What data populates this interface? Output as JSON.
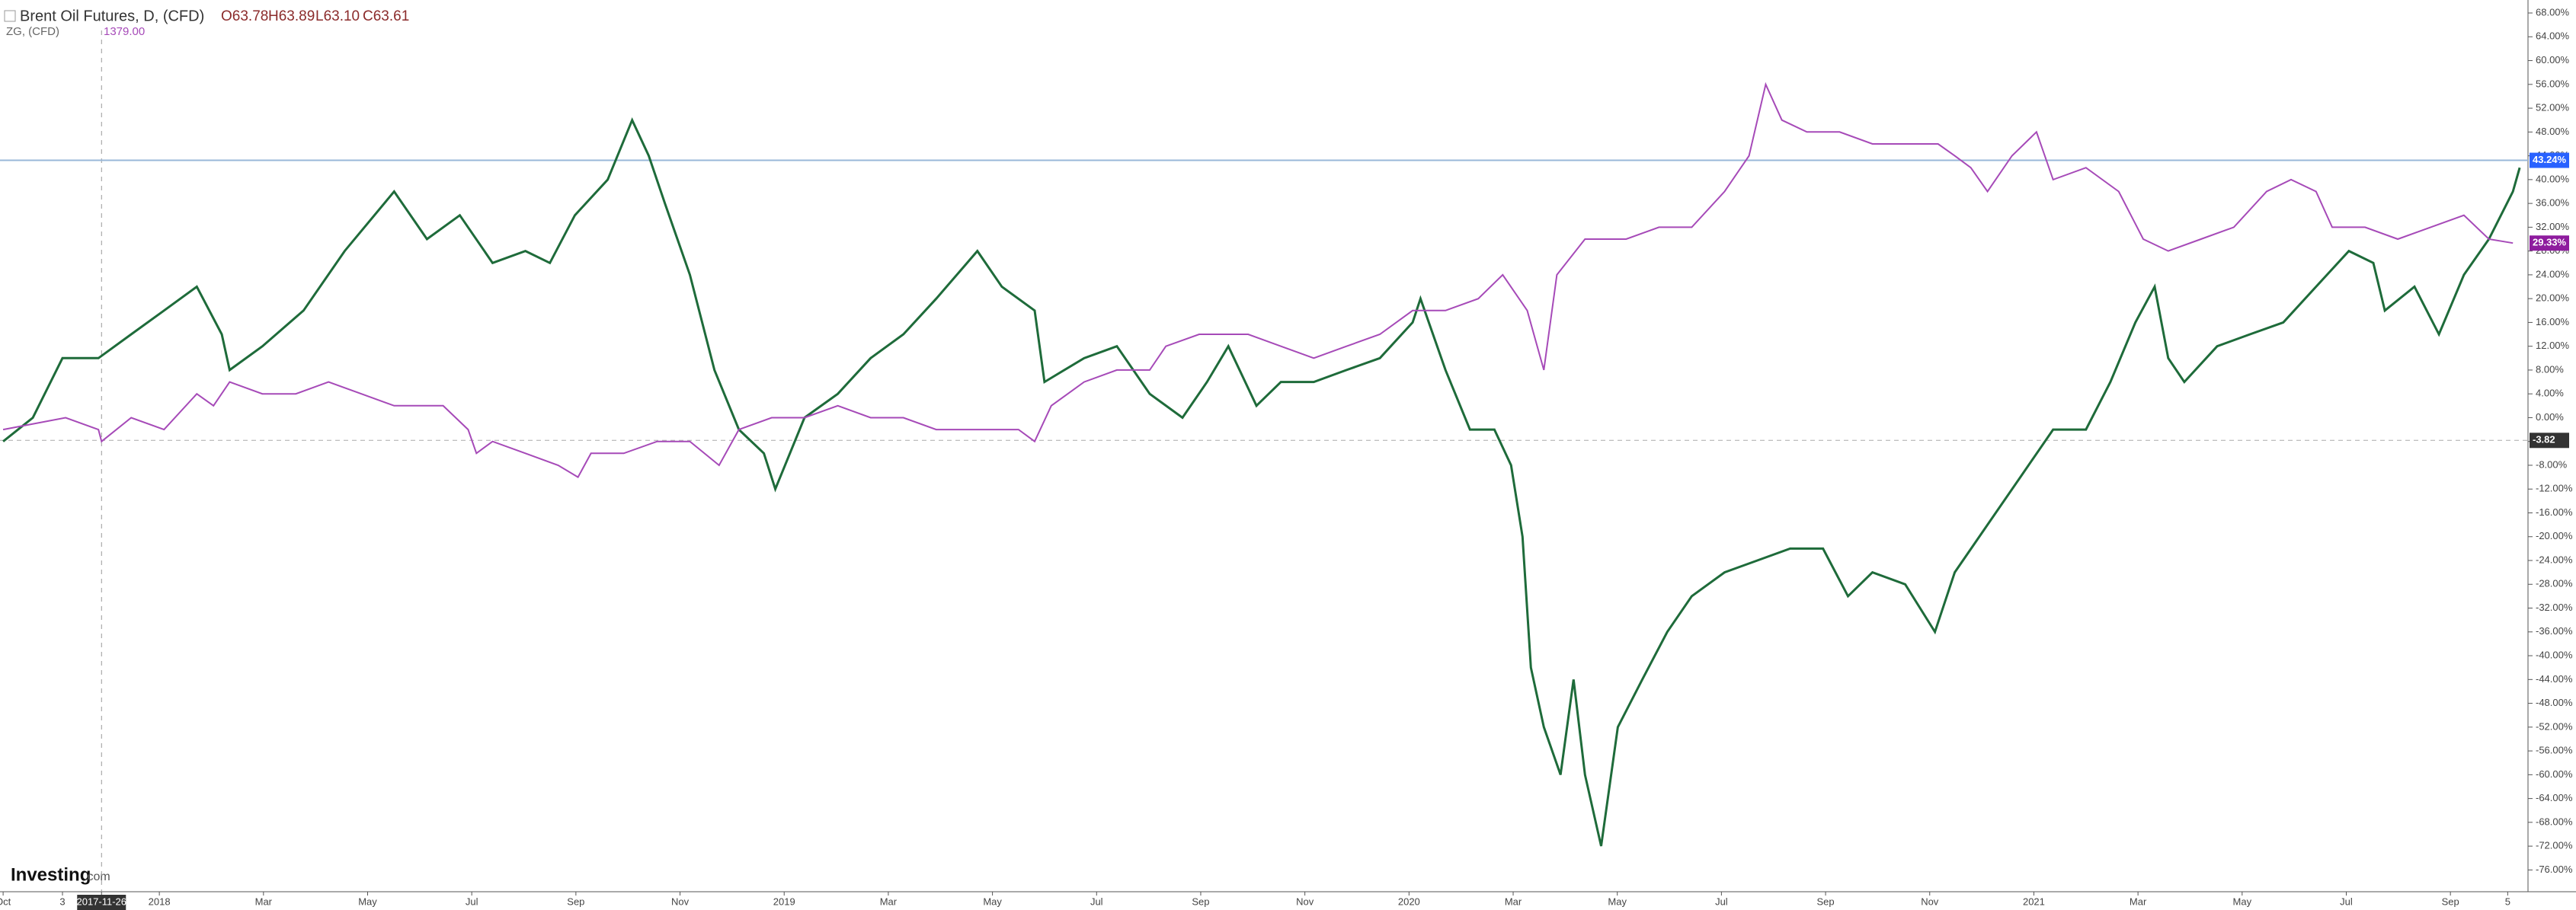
{
  "header": {
    "title": "Brent Oil Futures, D, (CFD)",
    "ohlc": [
      "O63.78",
      "H63.89",
      "L63.10",
      "C63.61"
    ],
    "compare_name": "ZG, (CFD)",
    "compare_value": "1379.00"
  },
  "logo": [
    "Investing",
    ".com"
  ],
  "chart_data": {
    "type": "line",
    "series": [
      {
        "name": "Brent Oil Futures, D, (CFD)",
        "color": "#1e6b3a",
        "x": [
          0,
          0.57,
          1.14,
          1.83,
          2.46,
          3.09,
          3.72,
          4.2,
          4.35,
          4.98,
          5.77,
          6.56,
          7.51,
          8.14,
          8.77,
          9.4,
          10.03,
          10.5,
          10.98,
          11.61,
          12.08,
          12.4,
          12.71,
          13.19,
          13.66,
          14.13,
          14.61,
          14.83,
          15.39,
          16.03,
          16.66,
          17.29,
          17.92,
          18.71,
          19.18,
          19.81,
          20,
          20.76,
          21.39,
          22.02,
          22.65,
          23.12,
          23.53,
          24.07,
          24.54,
          25.17,
          25.8,
          26.44,
          27.07,
          27.22,
          27.7,
          28.17,
          28.64,
          28.96,
          29.18,
          29.34,
          29.59,
          29.91,
          30.16,
          30.38,
          30.69,
          31.01,
          31.48,
          31.96,
          32.43,
          33.06,
          33.69,
          34.32,
          34.95,
          35.43,
          35.9,
          36.53,
          37.1,
          37.48,
          38.11,
          38.74,
          39.37,
          40,
          40.47,
          40.95,
          41.32,
          41.58,
          41.89,
          42.52,
          43.15,
          43.79,
          44.42,
          45.05,
          45.52,
          45.74,
          46.31,
          46.78,
          47.26,
          47.74,
          48.2,
          48.33
        ],
        "values": [
          -4,
          0,
          10,
          10,
          14,
          18,
          22,
          14,
          8,
          12,
          18,
          28,
          38,
          30,
          34,
          26,
          28,
          26,
          34,
          40,
          50,
          44,
          36,
          24,
          8,
          -2,
          -6,
          -12,
          0,
          4,
          10,
          14,
          20,
          28,
          22,
          18,
          6,
          10,
          12,
          4,
          0,
          6,
          12,
          2,
          6,
          6,
          8,
          10,
          16,
          20,
          8,
          -2,
          -2,
          -8,
          -20,
          -42,
          -52,
          -60,
          -44,
          -60,
          -72,
          -52,
          -44,
          -36,
          -30,
          -26,
          -24,
          -22,
          -22,
          -30,
          -26,
          -28,
          -36,
          -26,
          -18,
          -10,
          -2,
          -2,
          6,
          16,
          22,
          10,
          6,
          12,
          14,
          16,
          22,
          28,
          26,
          18,
          22,
          14,
          24,
          30,
          38,
          42
        ]
      },
      {
        "name": "ZG, (CFD)",
        "color": "#a64ab8",
        "x": [
          0,
          1.2,
          1.83,
          1.89,
          2.46,
          3.09,
          3.72,
          4.04,
          4.35,
          4.98,
          5.62,
          6.25,
          6.88,
          7.51,
          8.14,
          8.45,
          8.93,
          9.09,
          9.4,
          10.03,
          10.66,
          11.04,
          11.29,
          11.92,
          12.56,
          13.19,
          13.75,
          14.13,
          14.76,
          15.39,
          16.03,
          16.66,
          17.29,
          17.92,
          18.86,
          19.5,
          19.81,
          20.13,
          20.76,
          21.39,
          22.02,
          22.33,
          22.97,
          23.91,
          24.54,
          25.17,
          25.8,
          26.44,
          27.07,
          27.7,
          28.33,
          28.8,
          29.27,
          29.59,
          29.84,
          30.38,
          31.17,
          31.8,
          32.43,
          33.06,
          33.53,
          33.85,
          34.16,
          34.64,
          35.27,
          35.9,
          36.53,
          37.16,
          37.48,
          37.79,
          38.11,
          38.58,
          39.05,
          39.37,
          40,
          40.63,
          41.1,
          41.58,
          42.21,
          42.84,
          43.47,
          43.94,
          44.42,
          44.73,
          45.36,
          45.99,
          46.62,
          47.26,
          47.74,
          48.2
        ],
        "values": [
          -2,
          0,
          -2,
          -4,
          0,
          -2,
          4,
          2,
          6,
          4,
          4,
          6,
          4,
          2,
          2,
          2,
          -2,
          -6,
          -4,
          -6,
          -8,
          -10,
          -6,
          -6,
          -4,
          -4,
          -8,
          -2,
          0,
          0,
          2,
          0,
          0,
          -2,
          -2,
          -2,
          -4,
          2,
          6,
          8,
          8,
          12,
          14,
          14,
          12,
          10,
          12,
          14,
          18,
          18,
          20,
          24,
          18,
          8,
          24,
          30,
          30,
          32,
          32,
          38,
          44,
          56,
          50,
          48,
          48,
          46,
          46,
          46,
          44,
          42,
          38,
          44,
          48,
          40,
          42,
          38,
          30,
          28,
          30,
          32,
          38,
          40,
          38,
          32,
          32,
          30,
          32,
          34,
          30,
          29.33
        ]
      }
    ],
    "price_labels": [
      {
        "value": 43.24,
        "label": "43.24%",
        "color": "#2962ff"
      },
      {
        "value": 29.33,
        "label": "29.33%",
        "color": "#8e1c9e"
      },
      {
        "value": -3.82,
        "label": "-3.82",
        "color": "#333333"
      }
    ],
    "xlim": [
      -0.06,
      48.49
    ],
    "xticks": [
      {
        "value": 0,
        "label": "Oct"
      },
      {
        "value": 1.14,
        "label": "3"
      },
      {
        "value": 1.89,
        "label": "2017-11-26"
      },
      {
        "value": 3,
        "label": "2018"
      },
      {
        "value": 5,
        "label": "Mar"
      },
      {
        "value": 7,
        "label": "May"
      },
      {
        "value": 9,
        "label": "Jul"
      },
      {
        "value": 11,
        "label": "Sep"
      },
      {
        "value": 13,
        "label": "Nov"
      },
      {
        "value": 15,
        "label": "2019"
      },
      {
        "value": 17,
        "label": "Mar"
      },
      {
        "value": 19,
        "label": "May"
      },
      {
        "value": 21,
        "label": "Jul"
      },
      {
        "value": 23,
        "label": "Sep"
      },
      {
        "value": 25,
        "label": "Nov"
      },
      {
        "value": 27,
        "label": "2020"
      },
      {
        "value": 29,
        "label": "Mar"
      },
      {
        "value": 31,
        "label": "May"
      },
      {
        "value": 33,
        "label": "Jul"
      },
      {
        "value": 35,
        "label": "Sep"
      },
      {
        "value": 37,
        "label": "Nov"
      },
      {
        "value": 39,
        "label": "2021"
      },
      {
        "value": 41,
        "label": "Mar"
      },
      {
        "value": 43,
        "label": "May"
      },
      {
        "value": 45,
        "label": "Jul"
      },
      {
        "value": 47,
        "label": "Sep"
      },
      {
        "value": 48.1,
        "label": "5"
      }
    ],
    "ylim": [
      -79.66,
      70.18
    ],
    "yticks": [
      {
        "value": 68,
        "label": "68.00%"
      },
      {
        "value": 64,
        "label": "64.00%"
      },
      {
        "value": 60,
        "label": "60.00%"
      },
      {
        "value": 56,
        "label": "56.00%"
      },
      {
        "value": 52,
        "label": "52.00%"
      },
      {
        "value": 48,
        "label": "48.00%"
      },
      {
        "value": 44,
        "label": "44.00%"
      },
      {
        "value": 40,
        "label": "40.00%"
      },
      {
        "value": 36,
        "label": "36.00%"
      },
      {
        "value": 32,
        "label": "32.00%"
      },
      {
        "value": 28,
        "label": "28.00%"
      },
      {
        "value": 24,
        "label": "24.00%"
      },
      {
        "value": 20,
        "label": "20.00%"
      },
      {
        "value": 16,
        "label": "16.00%"
      },
      {
        "value": 12,
        "label": "12.00%"
      },
      {
        "value": 8,
        "label": "8.00%"
      },
      {
        "value": 4,
        "label": "4.00%"
      },
      {
        "value": 0,
        "label": "0.00%"
      },
      {
        "value": -4,
        "label": "-4.00%"
      },
      {
        "value": -8,
        "label": "-8.00%"
      },
      {
        "value": -12,
        "label": "-12.00%"
      },
      {
        "value": -16,
        "label": "-16.00%"
      },
      {
        "value": -20,
        "label": "-20.00%"
      },
      {
        "value": -24,
        "label": "-24.00%"
      },
      {
        "value": -28,
        "label": "-28.00%"
      },
      {
        "value": -32,
        "label": "-32.00%"
      },
      {
        "value": -36,
        "label": "-36.00%"
      },
      {
        "value": -40,
        "label": "-40.00%"
      },
      {
        "value": -44,
        "label": "-44.00%"
      },
      {
        "value": -48,
        "label": "-48.00%"
      },
      {
        "value": -52,
        "label": "-52.00%"
      },
      {
        "value": -56,
        "label": "-56.00%"
      },
      {
        "value": -60,
        "label": "-60.00%"
      },
      {
        "value": -64,
        "label": "-64.00%"
      },
      {
        "value": -68,
        "label": "-68.00%"
      },
      {
        "value": -72,
        "label": "-72.00%"
      },
      {
        "value": -76,
        "label": "-76.00%"
      }
    ],
    "grid": false
  }
}
